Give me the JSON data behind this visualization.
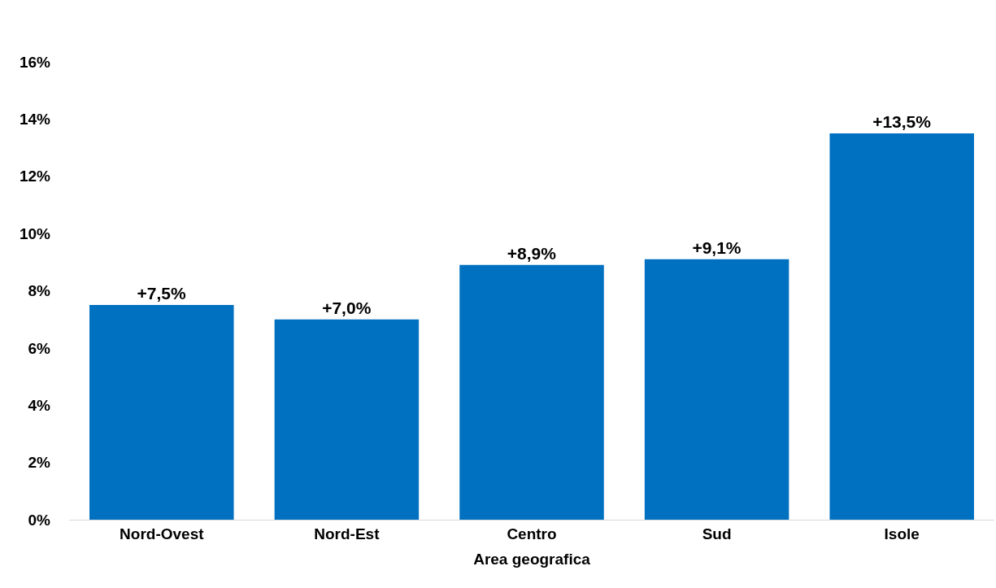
{
  "chart_data": {
    "type": "bar",
    "xlabel": "Area geografica",
    "categories": [
      "Nord-Ovest",
      "Nord-Est",
      "Centro",
      "Sud",
      "Isole"
    ],
    "values": [
      7.5,
      7.0,
      8.9,
      9.1,
      13.5
    ],
    "color": "#0070c0",
    "value_labels": [
      "+7,5%",
      "+7,0%",
      "+8,9%",
      "+9,1%",
      "+13,5%"
    ],
    "ylim": [
      0,
      16
    ],
    "yticks": [
      {
        "value": 0,
        "label": "0%"
      },
      {
        "value": 2,
        "label": "2%"
      },
      {
        "value": 4,
        "label": "4%"
      },
      {
        "value": 6,
        "label": "6%"
      },
      {
        "value": 8,
        "label": "8%"
      },
      {
        "value": 10,
        "label": "10%"
      },
      {
        "value": 12,
        "label": "12%"
      },
      {
        "value": 14,
        "label": "14%"
      },
      {
        "value": 16,
        "label": "16%"
      }
    ],
    "grid": false
  }
}
